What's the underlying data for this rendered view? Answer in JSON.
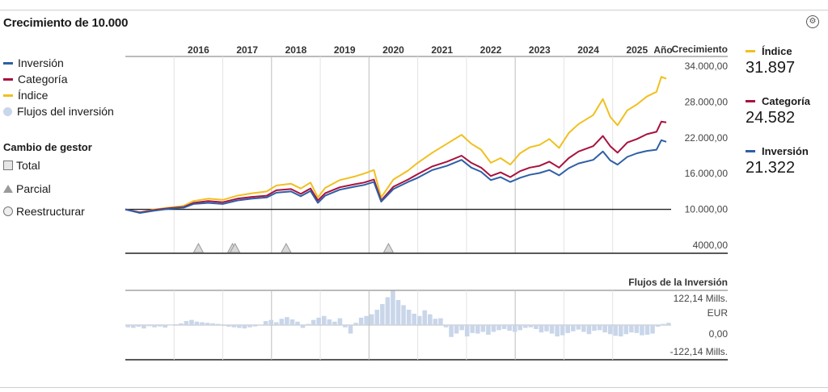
{
  "title": "Crecimiento de 10.000",
  "icons": {
    "corner": "settings-icon"
  },
  "legend": [
    {
      "label": "Inversión",
      "color": "#2e5fa6"
    },
    {
      "label": "Categoría",
      "color": "#a8123e"
    },
    {
      "label": "Índice",
      "color": "#f0c020"
    },
    {
      "label": "Flujos del inversión",
      "color": "#c9d6ea"
    }
  ],
  "manager_change": {
    "title": "Cambio de gestor",
    "items": [
      "Total",
      "Parcial",
      "Reestructurar"
    ]
  },
  "right_legend": [
    {
      "label": "Índice",
      "value": "31.897",
      "color": "#f0c020"
    },
    {
      "label": "Categoría",
      "value": "24.582",
      "color": "#a8123e"
    },
    {
      "label": "Inversión",
      "value": "21.322",
      "color": "#2e5fa6"
    }
  ],
  "chart_data": [
    {
      "type": "line",
      "title": "",
      "xlabel": "Año",
      "ylabel": "Crecimiento",
      "x_ticks": [
        "2016",
        "2017",
        "2018",
        "2019",
        "2020",
        "2021",
        "2022",
        "2023",
        "2024",
        "2025"
      ],
      "y_ticks": [
        "34.000,00",
        "28.000,00",
        "22.000,00",
        "16.000,00",
        "10.000,00",
        "4000,00"
      ],
      "ylim": [
        4000,
        34000
      ],
      "xlim": [
        2015.0,
        2026.2
      ],
      "series": [
        {
          "name": "Índice",
          "color": "#f0c020",
          "points": [
            [
              2015.0,
              10000
            ],
            [
              2015.3,
              9500
            ],
            [
              2015.6,
              10000
            ],
            [
              2015.9,
              10300
            ],
            [
              2016.2,
              10600
            ],
            [
              2016.4,
              11400
            ],
            [
              2016.7,
              11800
            ],
            [
              2017.0,
              11600
            ],
            [
              2017.3,
              12300
            ],
            [
              2017.6,
              12700
            ],
            [
              2017.9,
              13000
            ],
            [
              2018.1,
              14000
            ],
            [
              2018.4,
              14300
            ],
            [
              2018.6,
              13500
            ],
            [
              2018.8,
              14500
            ],
            [
              2018.95,
              12000
            ],
            [
              2019.1,
              13600
            ],
            [
              2019.4,
              14900
            ],
            [
              2019.7,
              15500
            ],
            [
              2019.9,
              16000
            ],
            [
              2020.1,
              16600
            ],
            [
              2020.25,
              12000
            ],
            [
              2020.5,
              15000
            ],
            [
              2020.8,
              16500
            ],
            [
              2021.0,
              17800
            ],
            [
              2021.3,
              19500
            ],
            [
              2021.6,
              21000
            ],
            [
              2021.9,
              22500
            ],
            [
              2022.1,
              21000
            ],
            [
              2022.3,
              20000
            ],
            [
              2022.5,
              17800
            ],
            [
              2022.7,
              18600
            ],
            [
              2022.9,
              17500
            ],
            [
              2023.1,
              19400
            ],
            [
              2023.3,
              20400
            ],
            [
              2023.5,
              20800
            ],
            [
              2023.7,
              21800
            ],
            [
              2023.9,
              20300
            ],
            [
              2024.1,
              22800
            ],
            [
              2024.3,
              24300
            ],
            [
              2024.6,
              25800
            ],
            [
              2024.8,
              28500
            ],
            [
              2024.95,
              25500
            ],
            [
              2025.1,
              24100
            ],
            [
              2025.3,
              26600
            ],
            [
              2025.5,
              27600
            ],
            [
              2025.7,
              28900
            ],
            [
              2025.9,
              29700
            ],
            [
              2026.0,
              32200
            ],
            [
              2026.1,
              31900
            ]
          ]
        },
        {
          "name": "Categoría",
          "color": "#a8123e",
          "points": [
            [
              2015.0,
              10000
            ],
            [
              2015.3,
              9500
            ],
            [
              2015.6,
              9900
            ],
            [
              2015.9,
              10200
            ],
            [
              2016.2,
              10400
            ],
            [
              2016.4,
              11100
            ],
            [
              2016.7,
              11400
            ],
            [
              2017.0,
              11200
            ],
            [
              2017.3,
              11800
            ],
            [
              2017.6,
              12100
            ],
            [
              2017.9,
              12300
            ],
            [
              2018.1,
              13200
            ],
            [
              2018.4,
              13400
            ],
            [
              2018.6,
              12600
            ],
            [
              2018.8,
              13500
            ],
            [
              2018.95,
              11500
            ],
            [
              2019.1,
              12700
            ],
            [
              2019.4,
              13700
            ],
            [
              2019.7,
              14200
            ],
            [
              2019.9,
              14500
            ],
            [
              2020.1,
              15000
            ],
            [
              2020.25,
              11500
            ],
            [
              2020.5,
              13800
            ],
            [
              2020.8,
              15000
            ],
            [
              2021.0,
              15900
            ],
            [
              2021.3,
              17200
            ],
            [
              2021.6,
              18000
            ],
            [
              2021.9,
              19000
            ],
            [
              2022.1,
              17800
            ],
            [
              2022.3,
              17000
            ],
            [
              2022.5,
              15600
            ],
            [
              2022.7,
              16200
            ],
            [
              2022.9,
              15400
            ],
            [
              2023.1,
              16400
            ],
            [
              2023.3,
              17000
            ],
            [
              2023.5,
              17300
            ],
            [
              2023.7,
              18000
            ],
            [
              2023.9,
              17000
            ],
            [
              2024.1,
              18600
            ],
            [
              2024.3,
              19700
            ],
            [
              2024.6,
              20600
            ],
            [
              2024.8,
              22300
            ],
            [
              2024.95,
              20600
            ],
            [
              2025.1,
              19500
            ],
            [
              2025.3,
              21200
            ],
            [
              2025.5,
              21800
            ],
            [
              2025.7,
              22600
            ],
            [
              2025.9,
              23000
            ],
            [
              2026.0,
              24700
            ],
            [
              2026.1,
              24582
            ]
          ]
        },
        {
          "name": "Inversión",
          "color": "#2e5fa6",
          "points": [
            [
              2015.0,
              10000
            ],
            [
              2015.3,
              9400
            ],
            [
              2015.6,
              9800
            ],
            [
              2015.9,
              10100
            ],
            [
              2016.2,
              10300
            ],
            [
              2016.4,
              10900
            ],
            [
              2016.7,
              11100
            ],
            [
              2017.0,
              10900
            ],
            [
              2017.3,
              11500
            ],
            [
              2017.6,
              11800
            ],
            [
              2017.9,
              12000
            ],
            [
              2018.1,
              12800
            ],
            [
              2018.4,
              13000
            ],
            [
              2018.6,
              12200
            ],
            [
              2018.8,
              13100
            ],
            [
              2018.95,
              11100
            ],
            [
              2019.1,
              12300
            ],
            [
              2019.4,
              13300
            ],
            [
              2019.7,
              13800
            ],
            [
              2019.9,
              14100
            ],
            [
              2020.1,
              14600
            ],
            [
              2020.25,
              11300
            ],
            [
              2020.5,
              13400
            ],
            [
              2020.8,
              14600
            ],
            [
              2021.0,
              15300
            ],
            [
              2021.3,
              16600
            ],
            [
              2021.6,
              17300
            ],
            [
              2021.9,
              18300
            ],
            [
              2022.1,
              17000
            ],
            [
              2022.3,
              16300
            ],
            [
              2022.5,
              14900
            ],
            [
              2022.7,
              15400
            ],
            [
              2022.9,
              14600
            ],
            [
              2023.1,
              15300
            ],
            [
              2023.3,
              15800
            ],
            [
              2023.5,
              16100
            ],
            [
              2023.7,
              16600
            ],
            [
              2023.9,
              15700
            ],
            [
              2024.1,
              16900
            ],
            [
              2024.3,
              17700
            ],
            [
              2024.6,
              18300
            ],
            [
              2024.8,
              19700
            ],
            [
              2024.95,
              18200
            ],
            [
              2025.1,
              17500
            ],
            [
              2025.3,
              18800
            ],
            [
              2025.5,
              19400
            ],
            [
              2025.7,
              19800
            ],
            [
              2025.9,
              20000
            ],
            [
              2026.0,
              21600
            ],
            [
              2026.1,
              21322
            ]
          ]
        }
      ],
      "manager_change_markers": [
        {
          "x": 2016.5,
          "type": "Parcial"
        },
        {
          "x": 2017.2,
          "type": "Parcial"
        },
        {
          "x": 2017.25,
          "type": "Parcial"
        },
        {
          "x": 2018.3,
          "type": "Parcial"
        },
        {
          "x": 2020.4,
          "type": "Parcial"
        }
      ]
    },
    {
      "type": "bar",
      "title": "Flujos de la Inversión",
      "y_ticks": [
        "122,14 Mills. EUR",
        "0,00",
        "-122,14 Mills."
      ],
      "ylim": [
        -122.14,
        122.14
      ],
      "unit": "Mills. EUR",
      "values": [
        -8,
        -10,
        -6,
        -12,
        -4,
        -8,
        -5,
        -9,
        0,
        3,
        6,
        14,
        18,
        12,
        10,
        8,
        6,
        4,
        -3,
        -6,
        -8,
        -10,
        -12,
        -8,
        -5,
        2,
        14,
        18,
        10,
        22,
        28,
        20,
        12,
        -10,
        4,
        18,
        26,
        32,
        20,
        12,
        24,
        -8,
        -30,
        8,
        26,
        32,
        38,
        54,
        74,
        98,
        120,
        88,
        70,
        54,
        40,
        32,
        52,
        38,
        22,
        24,
        -8,
        -42,
        -30,
        -18,
        -40,
        -28,
        -30,
        -24,
        -34,
        -24,
        -18,
        -14,
        -20,
        -24,
        -18,
        -10,
        -8,
        -14,
        -26,
        -22,
        -30,
        -40,
        -36,
        -28,
        -22,
        -16,
        -24,
        -32,
        -20,
        -18,
        -26,
        -32,
        -38,
        -40,
        -32,
        -26,
        -28,
        -36,
        -34,
        -30,
        -6,
        4,
        8
      ]
    }
  ]
}
